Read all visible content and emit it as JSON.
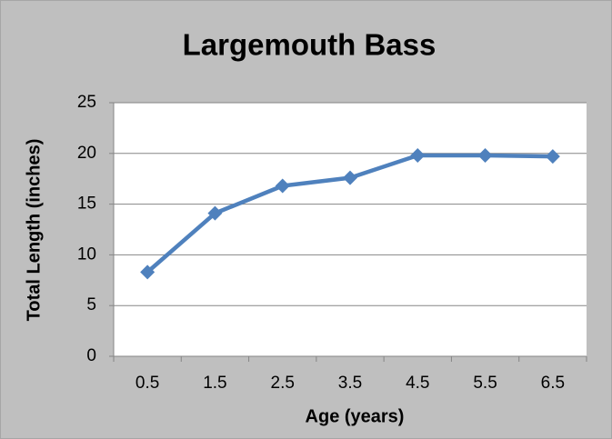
{
  "chart_data": {
    "type": "line",
    "title": "Largemouth Bass",
    "x_label": "Age (years)",
    "y_label": "Total Length (inches)",
    "categories": [
      "0.5",
      "1.5",
      "2.5",
      "3.5",
      "4.5",
      "5.5",
      "6.5"
    ],
    "values": [
      8.3,
      14.1,
      16.8,
      17.6,
      19.8,
      19.8,
      19.7
    ],
    "color": "#4f81bd",
    "ylim": [
      0,
      25
    ],
    "yticks": [
      0,
      5,
      10,
      15,
      20,
      25
    ],
    "grid": true
  }
}
